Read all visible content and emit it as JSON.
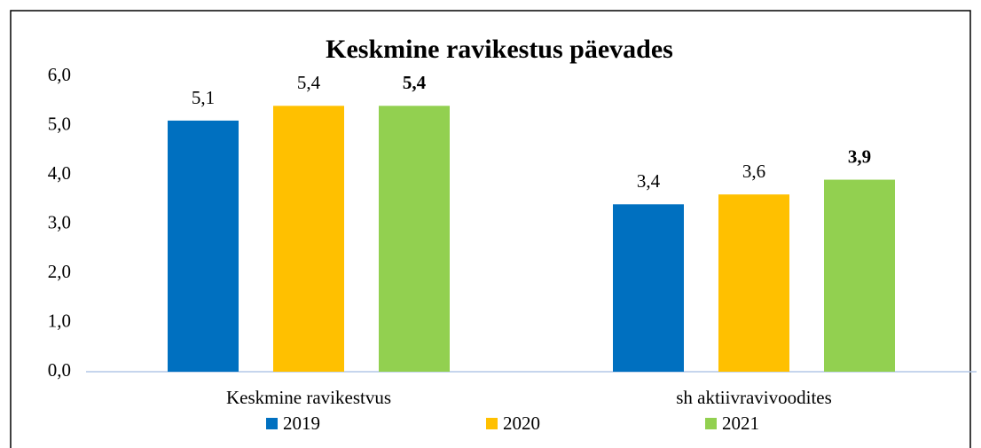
{
  "chart_data": {
    "type": "bar",
    "title": "Keskmine ravikestus päevades",
    "categories": [
      "Keskmine ravikestvus",
      "sh aktiivravivoodites"
    ],
    "series": [
      {
        "name": "2019",
        "color": "#0070c0",
        "values": [
          5.1,
          3.4
        ],
        "value_labels": [
          "5,1",
          "3,4"
        ]
      },
      {
        "name": "2020",
        "color": "#ffc000",
        "values": [
          5.4,
          3.6
        ],
        "value_labels": [
          "5,4",
          "3,6"
        ]
      },
      {
        "name": "2021",
        "color": "#92d050",
        "values": [
          5.4,
          3.9
        ],
        "value_labels": [
          "5,4",
          "3,9"
        ]
      }
    ],
    "ylim": [
      0,
      6
    ],
    "yticks": [
      {
        "value": 0,
        "label": "0,0"
      },
      {
        "value": 1,
        "label": "1,0"
      },
      {
        "value": 2,
        "label": "2,0"
      },
      {
        "value": 3,
        "label": "3,0"
      },
      {
        "value": 4,
        "label": "4,0"
      },
      {
        "value": 5,
        "label": "5,0"
      },
      {
        "value": 6,
        "label": "6,0"
      }
    ],
    "grid": false,
    "legend": "bottom"
  }
}
